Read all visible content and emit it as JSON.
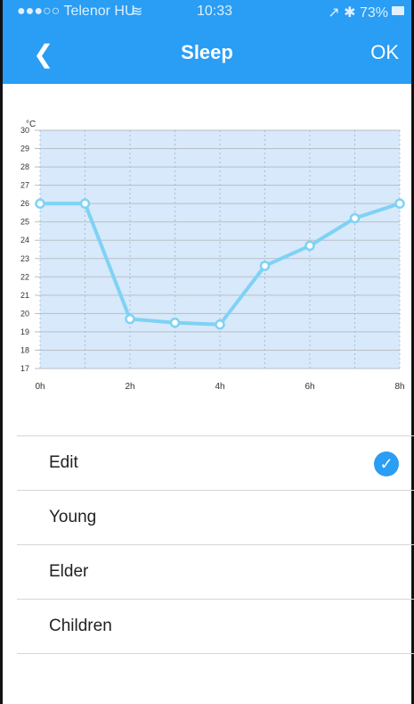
{
  "status_bar": {
    "carrier": "●●●○○ Telenor HU",
    "wifi": "wifi-icon",
    "time": "10:33",
    "right": "↗ ✱ 73%"
  },
  "nav": {
    "back_icon": "chevron-left-icon",
    "title": "Sleep",
    "ok_label": "OK"
  },
  "chart_data": {
    "type": "line",
    "ylabel": "°C",
    "ylim": [
      17,
      30
    ],
    "y_ticks": [
      30,
      29,
      28,
      27,
      26,
      25,
      24,
      23,
      22,
      21,
      20,
      19,
      18,
      17
    ],
    "x_tick_labels": [
      "0h",
      "2h",
      "4h",
      "6h",
      "8h"
    ],
    "x": [
      0,
      1,
      2,
      3,
      4,
      5,
      6,
      7,
      8
    ],
    "values": [
      26,
      26,
      19.7,
      19.5,
      19.4,
      22.6,
      23.7,
      25.2,
      26
    ],
    "colors": {
      "line": "#7fd2f4",
      "fill": "#d7e9fa"
    }
  },
  "list": {
    "items": [
      {
        "label": "Edit",
        "selected": true
      },
      {
        "label": "Young",
        "selected": false
      },
      {
        "label": "Elder",
        "selected": false
      },
      {
        "label": "Children",
        "selected": false
      }
    ],
    "selected_icon": "checkmark-circle-icon"
  }
}
